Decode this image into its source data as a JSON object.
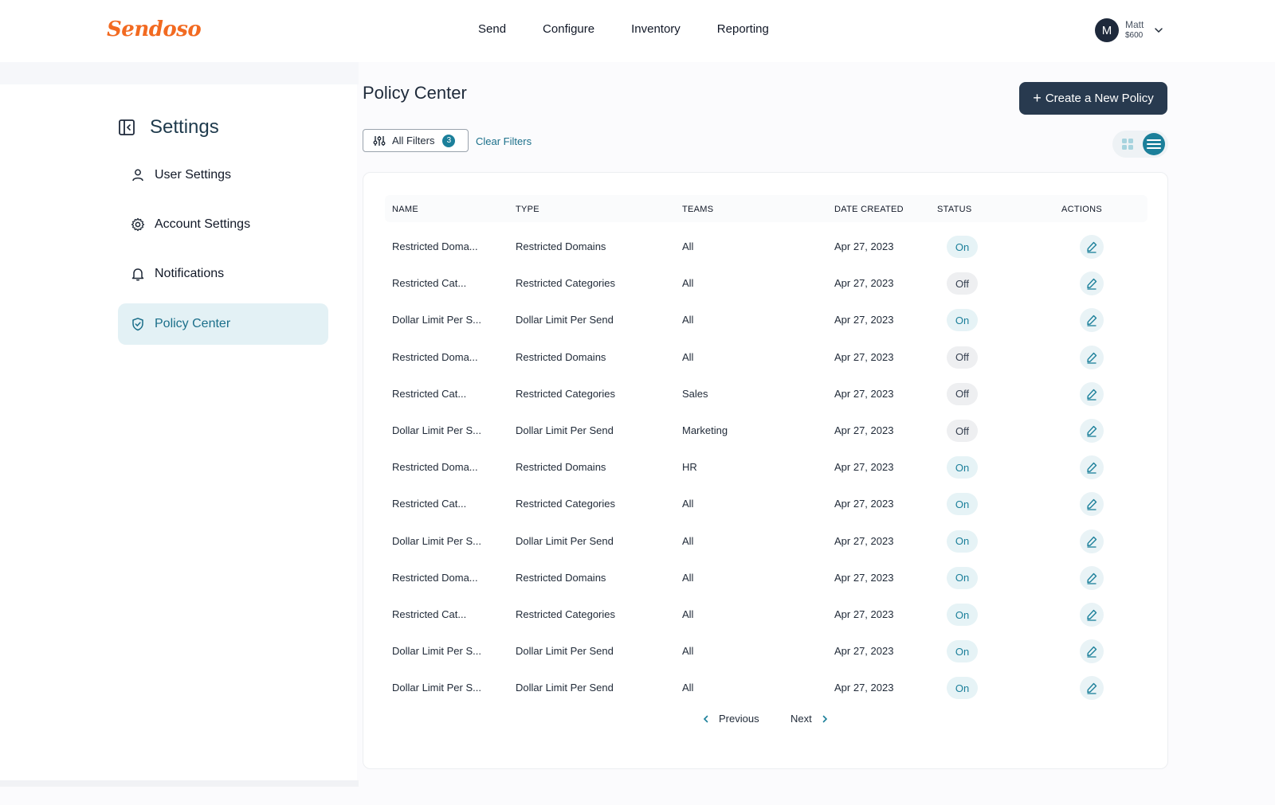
{
  "brand": {
    "logo": "Sendoso",
    "accent": "#f26a21"
  },
  "nav": {
    "items": [
      "Send",
      "Configure",
      "Inventory",
      "Reporting"
    ]
  },
  "user": {
    "initial": "M",
    "name": "Matt",
    "balance": "$600"
  },
  "sidebar": {
    "title": "Settings",
    "items": [
      {
        "label": "User Settings",
        "icon": "user-icon"
      },
      {
        "label": "Account Settings",
        "icon": "gear-icon"
      },
      {
        "label": "Notifications",
        "icon": "bell-icon"
      },
      {
        "label": "Policy Center",
        "icon": "shield-check-icon",
        "active": true
      }
    ]
  },
  "main": {
    "title": "Policy Center",
    "create_label": "Create a New Policy",
    "filters_label": "All Filters",
    "filters_count": "3",
    "clear_label": "Clear Filters"
  },
  "table": {
    "columns": [
      "NAME",
      "TYPE",
      "TEAMS",
      "DATE CREATED",
      "STATUS",
      "ACTIONS"
    ],
    "rows": [
      {
        "name": "Restricted Doma...",
        "type": "Restricted Domains",
        "teams": "All",
        "date": "Apr 27, 2023",
        "status": "On"
      },
      {
        "name": "Restricted Cat...",
        "type": "Restricted Categories",
        "teams": "All",
        "date": "Apr 27, 2023",
        "status": "Off"
      },
      {
        "name": "Dollar Limit Per S...",
        "type": "Dollar Limit Per Send",
        "teams": "All",
        "date": "Apr 27, 2023",
        "status": "On"
      },
      {
        "name": "Restricted Doma...",
        "type": "Restricted Domains",
        "teams": "All",
        "date": "Apr 27, 2023",
        "status": "Off"
      },
      {
        "name": "Restricted Cat...",
        "type": "Restricted Categories",
        "teams": "Sales",
        "date": "Apr 27, 2023",
        "status": "Off"
      },
      {
        "name": "Dollar Limit Per S...",
        "type": "Dollar Limit Per Send",
        "teams": "Marketing",
        "date": "Apr 27, 2023",
        "status": "Off"
      },
      {
        "name": "Restricted Doma...",
        "type": "Restricted Domains",
        "teams": "HR",
        "date": "Apr 27, 2023",
        "status": "On"
      },
      {
        "name": "Restricted Cat...",
        "type": "Restricted Categories",
        "teams": "All",
        "date": "Apr 27, 2023",
        "status": "On"
      },
      {
        "name": "Dollar Limit Per S...",
        "type": "Dollar Limit Per Send",
        "teams": "All",
        "date": "Apr 27, 2023",
        "status": "On"
      },
      {
        "name": "Restricted Doma...",
        "type": "Restricted Domains",
        "teams": "All",
        "date": "Apr 27, 2023",
        "status": "On"
      },
      {
        "name": "Restricted Cat...",
        "type": "Restricted Categories",
        "teams": "All",
        "date": "Apr 27, 2023",
        "status": "On"
      },
      {
        "name": "Dollar Limit Per S...",
        "type": "Dollar Limit Per Send",
        "teams": "All",
        "date": "Apr 27, 2023",
        "status": "On"
      },
      {
        "name": "Dollar Limit Per S...",
        "type": "Dollar Limit Per Send",
        "teams": "All",
        "date": "Apr 27, 2023",
        "status": "On"
      }
    ]
  },
  "pagination": {
    "previous": "Previous",
    "next": "Next"
  },
  "colors": {
    "primary_dark": "#283a4f",
    "teal": "#1b7f9a",
    "active_bg": "#e3f1f5"
  }
}
